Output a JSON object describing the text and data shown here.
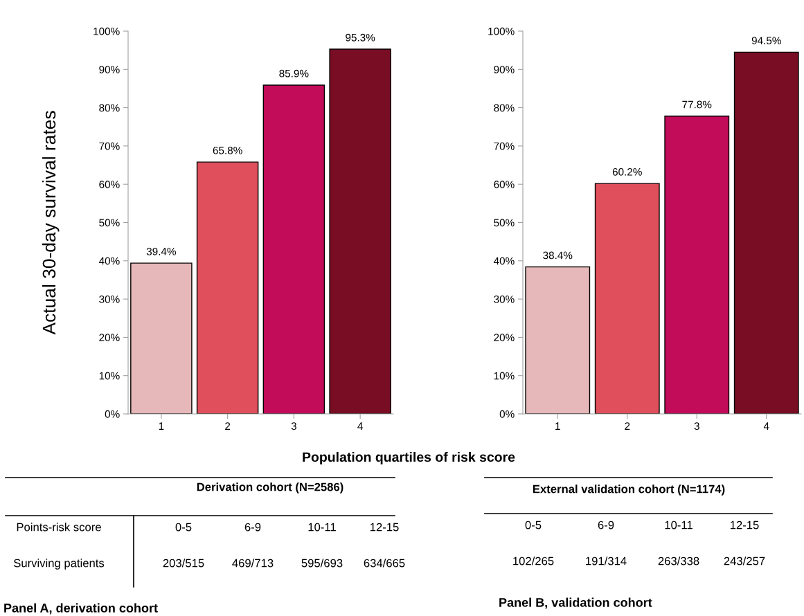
{
  "chart_data": [
    {
      "type": "bar",
      "categories": [
        "1",
        "2",
        "3",
        "4"
      ],
      "values": [
        39.4,
        65.8,
        85.9,
        95.3
      ],
      "colors": [
        "#e6b8b9",
        "#e0505c",
        "#c20b59",
        "#780d23"
      ],
      "value_labels": [
        "39.4%",
        "65.8%",
        "85.9%",
        "95.3%"
      ],
      "ylabel": "Actual 30-day survival rates",
      "xlabel": "Population quartiles of risk score",
      "ylim": [
        0,
        100
      ],
      "yticks": [
        {
          "value": 0,
          "label": "0%"
        },
        {
          "value": 10,
          "label": "10%"
        },
        {
          "value": 20,
          "label": "20%"
        },
        {
          "value": 30,
          "label": "30%"
        },
        {
          "value": 40,
          "label": "40%"
        },
        {
          "value": 50,
          "label": "50%"
        },
        {
          "value": 60,
          "label": "60%"
        },
        {
          "value": 70,
          "label": "70%"
        },
        {
          "value": 80,
          "label": "80%"
        },
        {
          "value": 90,
          "label": "90%"
        },
        {
          "value": 100,
          "label": "100%"
        }
      ],
      "grid": false,
      "legend": false,
      "annotations": [
        "Derivation cohort (N=2586)",
        "Points-risk score",
        "0-5",
        "6-9",
        "10-11",
        "12-15",
        "Surviving patients",
        "203/515",
        "469/713",
        "595/693",
        "634/665",
        "Panel A, derivation cohort"
      ]
    },
    {
      "type": "bar",
      "categories": [
        "1",
        "2",
        "3",
        "4"
      ],
      "values": [
        38.4,
        60.2,
        77.8,
        94.5
      ],
      "colors": [
        "#e6b8b9",
        "#e0505c",
        "#c20b59",
        "#780d23"
      ],
      "value_labels": [
        "38.4%",
        "60.2%",
        "77.8%",
        "94.5%"
      ],
      "ylim": [
        0,
        100
      ],
      "yticks": [
        {
          "value": 0,
          "label": "0%"
        },
        {
          "value": 10,
          "label": "10%"
        },
        {
          "value": 20,
          "label": "20%"
        },
        {
          "value": 30,
          "label": "30%"
        },
        {
          "value": 40,
          "label": "40%"
        },
        {
          "value": 50,
          "label": "50%"
        },
        {
          "value": 60,
          "label": "60%"
        },
        {
          "value": 70,
          "label": "70%"
        },
        {
          "value": 80,
          "label": "80%"
        },
        {
          "value": 90,
          "label": "90%"
        },
        {
          "value": 100,
          "label": "100%"
        }
      ],
      "grid": false,
      "legend": false,
      "annotations": [
        "External validation cohort (N=1174)",
        "0-5",
        "6-9",
        "10-11",
        "12-15",
        "102/265",
        "191/314",
        "263/338",
        "243/257",
        "Panel B, validation cohort"
      ]
    }
  ]
}
